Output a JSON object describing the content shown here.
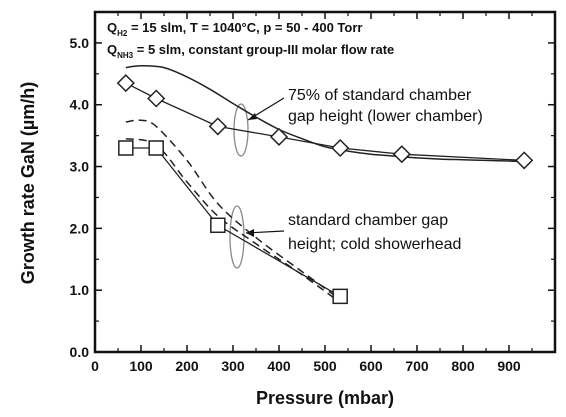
{
  "chart_data": {
    "type": "line",
    "xlabel": "Pressure (mbar)",
    "ylabel": "Growth rate GaN (µm/h)",
    "xlim": [
      0,
      1000
    ],
    "ylim": [
      0.0,
      5.5
    ],
    "x_ticks": [
      0,
      100,
      200,
      300,
      400,
      500,
      600,
      700,
      800,
      900
    ],
    "y_ticks": [
      0.0,
      1.0,
      2.0,
      3.0,
      4.0,
      5.0
    ],
    "x_tick_labels": [
      "0",
      "100",
      "200",
      "300",
      "400",
      "500",
      "600",
      "700",
      "800",
      "900"
    ],
    "y_tick_labels": [
      "0.0",
      "1.0",
      "2.0",
      "3.0",
      "4.0",
      "5.0"
    ],
    "conditions": {
      "line1_q": "Q",
      "line1_sub": "H2",
      "line1_rest": " = 15 slm, T = 1040°C, p = 50 - 400 Torr",
      "line2_q": "Q",
      "line2_sub": "NH3",
      "line2_rest": " = 5 slm, constant group-III molar flow rate"
    },
    "annotations": {
      "upper_line1": "75% of standard chamber",
      "upper_line2": "gap height (lower chamber)",
      "lower_line1": "standard chamber gap",
      "lower_line2": "height; cold showerhead"
    },
    "series": [
      {
        "marker": "diamond",
        "x": [
          67,
          133,
          267,
          400,
          533,
          667,
          933
        ],
        "y": [
          4.35,
          4.1,
          3.65,
          3.48,
          3.3,
          3.2,
          3.1
        ]
      },
      {
        "marker": "square",
        "x": [
          67,
          133,
          267,
          533
        ],
        "y": [
          3.3,
          3.3,
          2.05,
          0.9
        ]
      }
    ],
    "model_curves": [
      {
        "style": "solid",
        "x": [
          67,
          100,
          150,
          200,
          250,
          300,
          350,
          400,
          450,
          500,
          550,
          600,
          650,
          700,
          750,
          800,
          850,
          900,
          933
        ],
        "y": [
          4.6,
          4.63,
          4.6,
          4.45,
          4.25,
          4.02,
          3.8,
          3.6,
          3.45,
          3.32,
          3.25,
          3.2,
          3.17,
          3.14,
          3.12,
          3.11,
          3.1,
          3.09,
          3.08
        ]
      },
      {
        "style": "dashed",
        "x": [
          67,
          100,
          133,
          200,
          267,
          350,
          450,
          533
        ],
        "y": [
          3.72,
          3.75,
          3.65,
          3.1,
          2.4,
          1.85,
          1.3,
          0.85
        ]
      },
      {
        "style": "dashed",
        "x": [
          67,
          133,
          200,
          267,
          350,
          450,
          533
        ],
        "y": [
          3.45,
          3.35,
          2.75,
          2.2,
          1.75,
          1.25,
          0.8
        ]
      }
    ],
    "colors": {
      "axis": "#111111",
      "line": "#222222",
      "marker_fill": "#ffffff",
      "ellipse": "#888888"
    }
  }
}
